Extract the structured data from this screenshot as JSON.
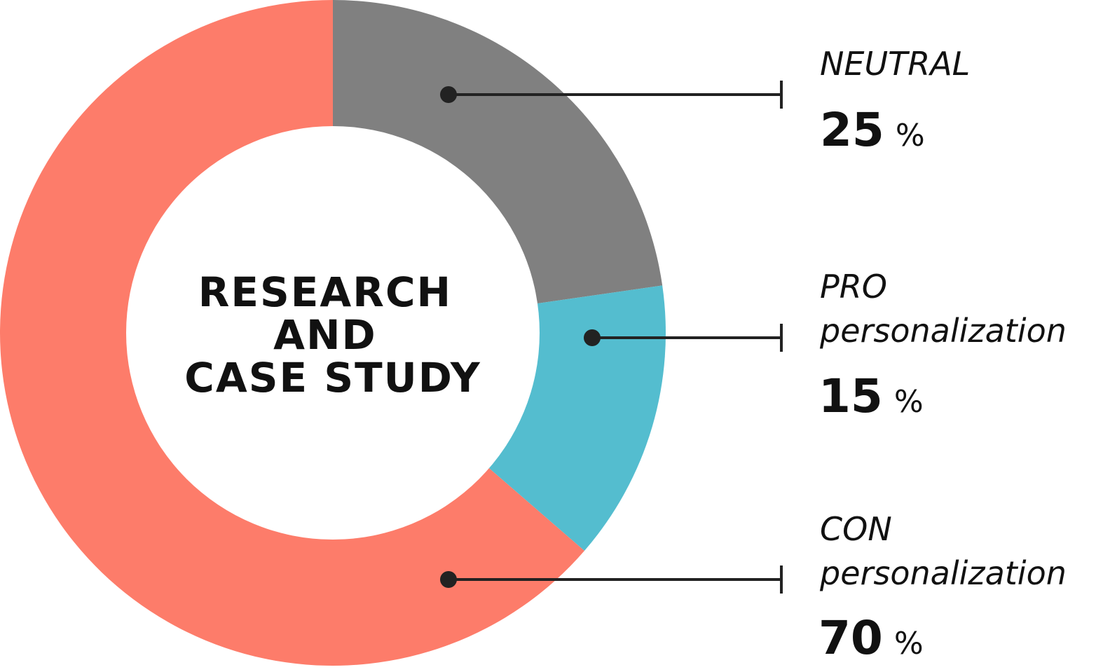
{
  "chart_data": {
    "type": "pie",
    "donut": true,
    "title": "RESEARCH AND CASE STUDY",
    "title_lines": [
      "RESEARCH",
      "AND",
      "CASE STUDY"
    ],
    "unit": "%",
    "slices": [
      {
        "label": "NEUTRAL",
        "label_lines": [
          "NEUTRAL"
        ],
        "value": 25,
        "color": "#808080"
      },
      {
        "label": "PRO personalization",
        "label_lines": [
          "PRO",
          "personalization"
        ],
        "value": 15,
        "color": "#54bdcf"
      },
      {
        "label": "CON personalization",
        "label_lines": [
          "CON",
          "personalization"
        ],
        "value": 70,
        "color": "#fd7c6a"
      }
    ],
    "start_angle_deg": 0,
    "direction": "clockwise",
    "legend_position": "right"
  }
}
